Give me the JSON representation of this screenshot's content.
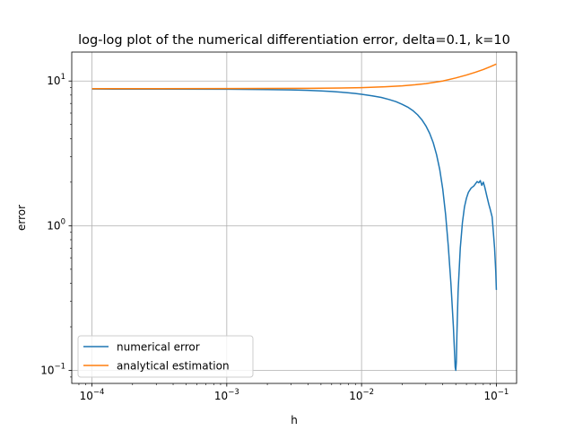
{
  "chart_data": {
    "type": "line",
    "title": "log-log plot of the numerical differentiation error, delta=0.1, k=10",
    "xlabel": "h",
    "ylabel": "error",
    "xscale": "log",
    "yscale": "log",
    "xlim": [
      7.08e-05,
      0.1413
    ],
    "ylim": [
      0.0813,
      15.85
    ],
    "grid": true,
    "legend_position": "lower-left",
    "x_ticks": [
      {
        "value": 0.0001,
        "mantissa": "10",
        "exp": "−4"
      },
      {
        "value": 0.001,
        "mantissa": "10",
        "exp": "−3"
      },
      {
        "value": 0.01,
        "mantissa": "10",
        "exp": "−2"
      },
      {
        "value": 0.1,
        "mantissa": "10",
        "exp": "−1"
      }
    ],
    "y_ticks": [
      {
        "value": 0.1,
        "mantissa": "10",
        "exp": "−1"
      },
      {
        "value": 1,
        "mantissa": "10",
        "exp": "0"
      },
      {
        "value": 10,
        "mantissa": "10",
        "exp": "1"
      }
    ],
    "series": [
      {
        "name": "numerical error",
        "color": "#1f77b4",
        "x": [
          0.0001,
          0.0003,
          0.001,
          0.002,
          0.003,
          0.004,
          0.005,
          0.006,
          0.007,
          0.008,
          0.009,
          0.01,
          0.012,
          0.014,
          0.016,
          0.018,
          0.02,
          0.022,
          0.024,
          0.026,
          0.028,
          0.03,
          0.032,
          0.034,
          0.036,
          0.038,
          0.04,
          0.042,
          0.044,
          0.046,
          0.048,
          0.049,
          0.0495,
          0.05,
          0.0505,
          0.051,
          0.052,
          0.054,
          0.056,
          0.058,
          0.06,
          0.062,
          0.065,
          0.068,
          0.07,
          0.072,
          0.074,
          0.076,
          0.078,
          0.08,
          0.082,
          0.085,
          0.088,
          0.09,
          0.093,
          0.095,
          0.097,
          0.099,
          0.1
        ],
        "y": [
          8.8,
          8.79,
          8.77,
          8.73,
          8.68,
          8.62,
          8.55,
          8.47,
          8.38,
          8.29,
          8.2,
          8.1,
          7.9,
          7.7,
          7.45,
          7.2,
          6.9,
          6.6,
          6.25,
          5.85,
          5.4,
          4.9,
          4.35,
          3.75,
          3.1,
          2.45,
          1.8,
          1.2,
          0.72,
          0.4,
          0.2,
          0.13,
          0.105,
          0.1,
          0.115,
          0.18,
          0.35,
          0.7,
          1.05,
          1.35,
          1.55,
          1.7,
          1.82,
          1.88,
          1.95,
          2.02,
          1.98,
          2.05,
          1.9,
          2.0,
          1.85,
          1.6,
          1.4,
          1.3,
          1.15,
          0.9,
          0.7,
          0.48,
          0.36
        ]
      },
      {
        "name": "analytical estimation",
        "color": "#ff7f0e",
        "x": [
          0.0001,
          0.0003,
          0.001,
          0.002,
          0.004,
          0.006,
          0.008,
          0.01,
          0.015,
          0.02,
          0.025,
          0.03,
          0.04,
          0.05,
          0.06,
          0.07,
          0.08,
          0.09,
          0.1
        ],
        "y": [
          8.86,
          8.86,
          8.87,
          8.88,
          8.9,
          8.93,
          8.97,
          9.0,
          9.12,
          9.26,
          9.42,
          9.6,
          10.0,
          10.5,
          11.0,
          11.5,
          12.0,
          12.55,
          13.1
        ]
      }
    ]
  }
}
